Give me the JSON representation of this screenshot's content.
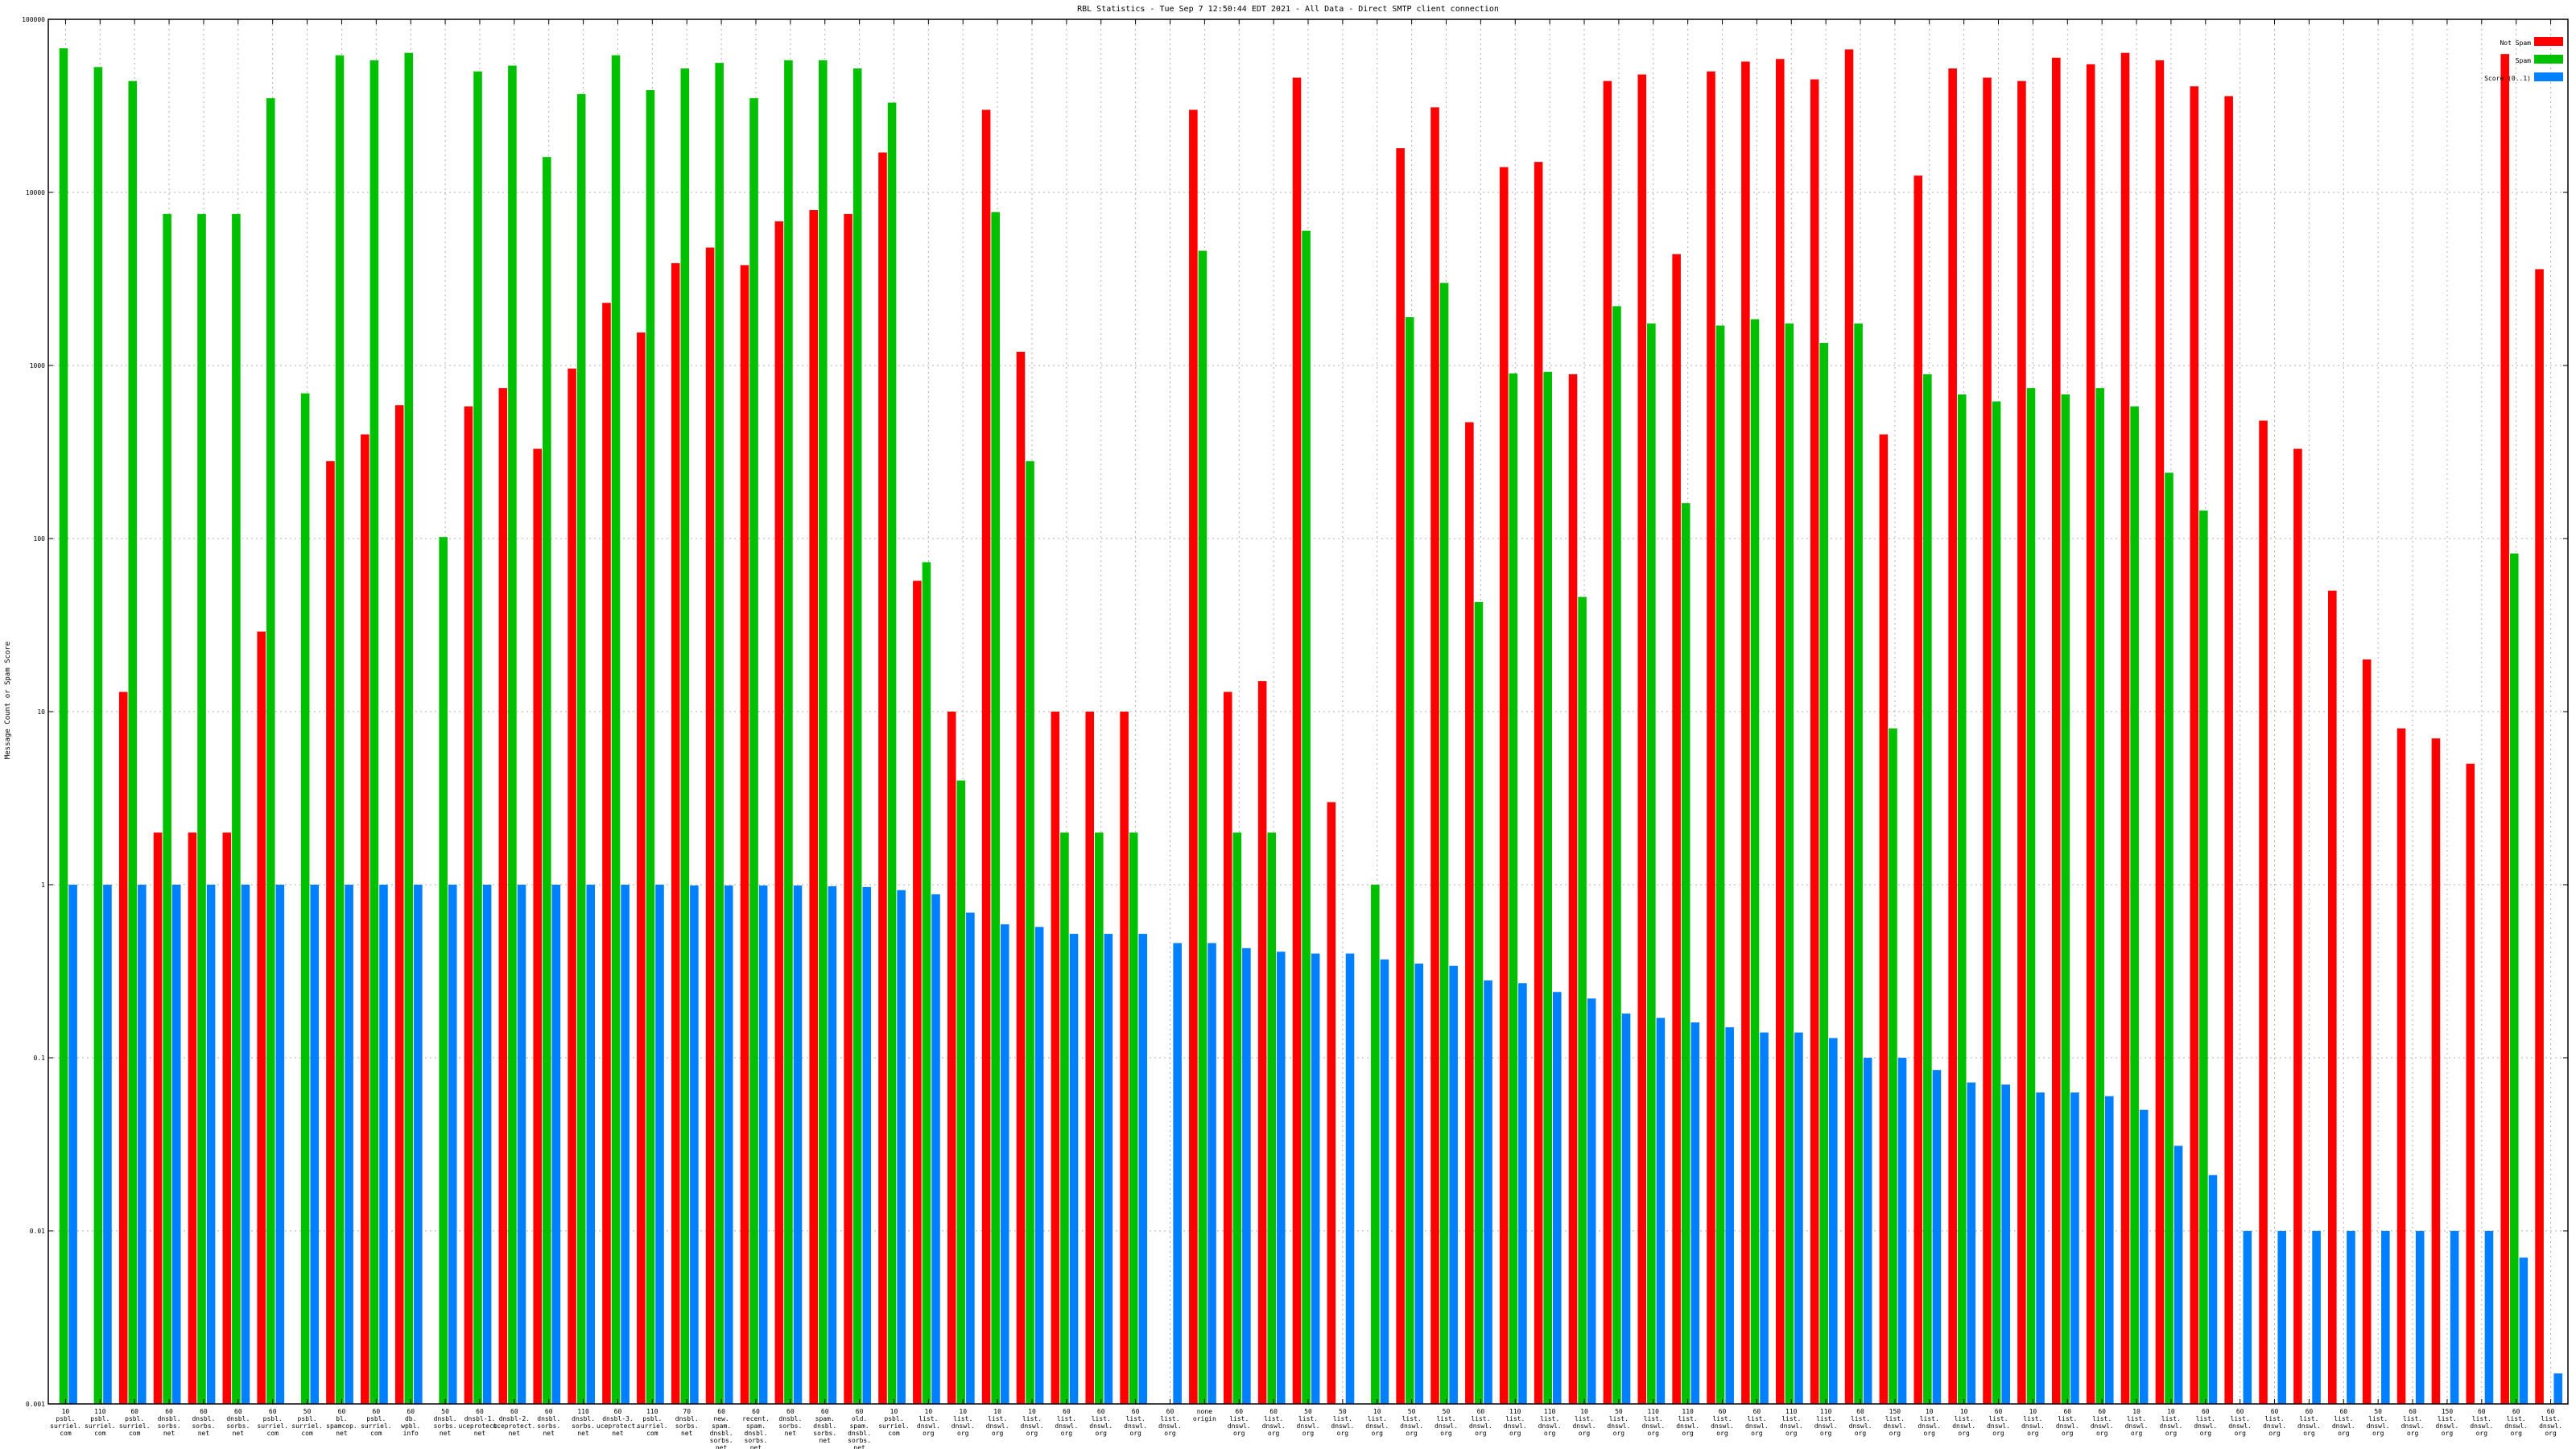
{
  "chart_data": {
    "type": "bar",
    "title": "RBL Statistics - Tue Sep  7 12:50:44 EDT 2021 - All Data - Direct SMTP client connection",
    "ylabel": "Message Count or Spam Score",
    "xlabel": "",
    "y_scale": "log",
    "ylim": [
      0.001,
      100000
    ],
    "y_ticks": [
      {
        "value": 100000,
        "label": "100000"
      },
      {
        "value": 10000,
        "label": "10000"
      },
      {
        "value": 1000,
        "label": "1000"
      },
      {
        "value": 100,
        "label": "100"
      },
      {
        "value": 10,
        "label": "10"
      },
      {
        "value": 1,
        "label": "1"
      },
      {
        "value": 0.1,
        "label": "0.1"
      },
      {
        "value": 0.01,
        "label": "0.01"
      },
      {
        "value": 0.001,
        "label": "0.001"
      }
    ],
    "grid": true,
    "legend_position": "top-right",
    "series_colors": [
      "#ff0000",
      "#00c000",
      "#0080ff"
    ],
    "categories": [
      [
        "10",
        "psbl.",
        "surriel.",
        "com"
      ],
      [
        "110",
        "psbl.",
        "surriel.",
        "com"
      ],
      [
        "60",
        "psbl.",
        "surriel.",
        "com"
      ],
      [
        "60",
        "dnsbl.",
        "sorbs.",
        "net"
      ],
      [
        "60",
        "dnsbl.",
        "sorbs.",
        "net"
      ],
      [
        "60",
        "dnsbl.",
        "sorbs.",
        "net"
      ],
      [
        "60",
        "psbl.",
        "surriel.",
        "com"
      ],
      [
        "50",
        "psbl.",
        "surriel.",
        "com"
      ],
      [
        "60",
        "bl.",
        "spamcop.",
        "net"
      ],
      [
        "60",
        "psbl.",
        "surriel.",
        "com"
      ],
      [
        "60",
        "db.",
        "wpbl.",
        "info"
      ],
      [
        "50",
        "dnsbl.",
        "sorbs.",
        "net"
      ],
      [
        "60",
        "dnsbl-1.",
        "uceprotect.",
        "net"
      ],
      [
        "60",
        "dnsbl-2.",
        "uceprotect.",
        "net"
      ],
      [
        "60",
        "dnsbl.",
        "sorbs.",
        "net"
      ],
      [
        "110",
        "dnsbl.",
        "sorbs.",
        "net"
      ],
      [
        "60",
        "dnsbl-3.",
        "uceprotect.",
        "net"
      ],
      [
        "110",
        "psbl.",
        "surriel.",
        "com"
      ],
      [
        "70",
        "dnsbl.",
        "sorbs.",
        "net"
      ],
      [
        "60",
        "new.",
        "spam.",
        "dnsbl.",
        "sorbs.",
        "net"
      ],
      [
        "60",
        "recent.",
        "spam.",
        "dnsbl.",
        "sorbs.",
        "net"
      ],
      [
        "60",
        "dnsbl.",
        "sorbs.",
        "net"
      ],
      [
        "60",
        "spam.",
        "dnsbl.",
        "sorbs.",
        "net"
      ],
      [
        "60",
        "old.",
        "spam.",
        "dnsbl.",
        "sorbs.",
        "net"
      ],
      [
        "10",
        "psbl.",
        "surriel.",
        "com"
      ],
      [
        "10",
        "list.",
        "dnswl.",
        "org"
      ],
      [
        "10",
        "list.",
        "dnswl.",
        "org"
      ],
      [
        "10",
        "list.",
        "dnswl.",
        "org"
      ],
      [
        "10",
        "list.",
        "dnswl.",
        "org"
      ],
      [
        "60",
        "list.",
        "dnswl.",
        "org"
      ],
      [
        "60",
        "list.",
        "dnswl.",
        "org"
      ],
      [
        "60",
        "list.",
        "dnswl.",
        "org"
      ],
      [
        "60",
        "list.",
        "dnswl.",
        "org"
      ],
      [
        "none",
        "origin"
      ],
      [
        "60",
        "list.",
        "dnswl.",
        "org"
      ],
      [
        "60",
        "list.",
        "dnswl.",
        "org"
      ],
      [
        "50",
        "list.",
        "dnswl.",
        "org"
      ],
      [
        "50",
        "list.",
        "dnswl.",
        "org"
      ],
      [
        "10",
        "list.",
        "dnswl.",
        "org"
      ],
      [
        "50",
        "list.",
        "dnswl.",
        "org"
      ],
      [
        "50",
        "list.",
        "dnswl.",
        "org"
      ],
      [
        "60",
        "list.",
        "dnswl.",
        "org"
      ],
      [
        "110",
        "list.",
        "dnswl.",
        "org"
      ],
      [
        "110",
        "list.",
        "dnswl.",
        "org"
      ],
      [
        "10",
        "list.",
        "dnswl.",
        "org"
      ],
      [
        "50",
        "list.",
        "dnswl.",
        "org"
      ],
      [
        "110",
        "list.",
        "dnswl.",
        "org"
      ],
      [
        "110",
        "list.",
        "dnswl.",
        "org"
      ],
      [
        "60",
        "list.",
        "dnswl.",
        "org"
      ],
      [
        "60",
        "list.",
        "dnswl.",
        "org"
      ],
      [
        "110",
        "list.",
        "dnswl.",
        "org"
      ],
      [
        "110",
        "list.",
        "dnswl.",
        "org"
      ],
      [
        "60",
        "list.",
        "dnswl.",
        "org"
      ],
      [
        "150",
        "list.",
        "dnswl.",
        "org"
      ],
      [
        "10",
        "list.",
        "dnswl.",
        "org"
      ],
      [
        "10",
        "list.",
        "dnswl.",
        "org"
      ],
      [
        "60",
        "list.",
        "dnswl.",
        "org"
      ],
      [
        "10",
        "list.",
        "dnswl.",
        "org"
      ],
      [
        "60",
        "list.",
        "dnswl.",
        "org"
      ],
      [
        "60",
        "list.",
        "dnswl.",
        "org"
      ],
      [
        "10",
        "list.",
        "dnswl.",
        "org"
      ],
      [
        "10",
        "list.",
        "dnswl.",
        "org"
      ],
      [
        "60",
        "list.",
        "dnswl.",
        "org"
      ],
      [
        "60",
        "list.",
        "dnswl.",
        "org"
      ],
      [
        "60",
        "list.",
        "dnswl.",
        "org"
      ],
      [
        "60",
        "list.",
        "dnswl.",
        "org"
      ],
      [
        "60",
        "list.",
        "dnswl.",
        "org"
      ],
      [
        "50",
        "list.",
        "dnswl.",
        "org"
      ],
      [
        "60",
        "list.",
        "dnswl.",
        "org"
      ],
      [
        "150",
        "list.",
        "dnswl.",
        "org"
      ],
      [
        "60",
        "list.",
        "dnswl.",
        "org"
      ],
      [
        "60",
        "list.",
        "dnswl.",
        "org"
      ],
      [
        "60",
        "list.",
        "dnswl.",
        "org"
      ]
    ],
    "series": [
      {
        "name": "Not Spam",
        "values": [
          0.001,
          0.001,
          13,
          2,
          2,
          2,
          29,
          0.001,
          280,
          400,
          590,
          0.001,
          580,
          740,
          330,
          960,
          2300,
          1550,
          3900,
          4800,
          3800,
          6800,
          7900,
          7500,
          17000,
          57,
          10,
          30000,
          1200,
          10,
          10,
          10,
          0.001,
          30000,
          13,
          15,
          46000,
          3,
          0.001,
          18000,
          31000,
          470,
          14000,
          15000,
          890,
          44000,
          48000,
          4400,
          50000,
          57000,
          59000,
          45000,
          67000,
          400,
          12500,
          52000,
          46000,
          44000,
          60000,
          55000,
          64000,
          58000,
          41000,
          36000,
          480,
          330,
          50,
          20,
          8,
          7,
          5,
          63000,
          3600
        ]
      },
      {
        "name": "Spam",
        "values": [
          68000,
          53000,
          44000,
          7500,
          7500,
          7500,
          35000,
          690,
          62000,
          58000,
          64000,
          102,
          50000,
          54000,
          16000,
          37000,
          62000,
          39000,
          52000,
          56000,
          35000,
          58000,
          58000,
          52000,
          33000,
          73,
          4,
          7700,
          280,
          2,
          2,
          2,
          0.001,
          4600,
          2,
          2,
          6000,
          0.001,
          1,
          1900,
          3000,
          43,
          900,
          920,
          46,
          2200,
          1750,
          160,
          1700,
          1850,
          1750,
          1350,
          1750,
          8,
          890,
          680,
          620,
          740,
          680,
          740,
          580,
          240,
          145,
          0.001,
          0.001,
          0.001,
          0.001,
          0.001,
          0.001,
          0.001,
          0.001,
          82,
          0.001
        ]
      },
      {
        "name": "Score (0..1)",
        "values": [
          1,
          1,
          1,
          1,
          1,
          1,
          1,
          1,
          1,
          1,
          1,
          1,
          1,
          1,
          1,
          1,
          1,
          1,
          0.99,
          0.99,
          0.99,
          0.99,
          0.98,
          0.97,
          0.93,
          0.88,
          0.69,
          0.59,
          0.57,
          0.52,
          0.52,
          0.52,
          0.46,
          0.46,
          0.43,
          0.41,
          0.4,
          0.4,
          0.37,
          0.35,
          0.34,
          0.28,
          0.27,
          0.24,
          0.22,
          0.18,
          0.17,
          0.16,
          0.15,
          0.14,
          0.14,
          0.13,
          0.1,
          0.1,
          0.085,
          0.072,
          0.07,
          0.063,
          0.063,
          0.06,
          0.05,
          0.031,
          0.021,
          0.01,
          0.01,
          0.01,
          0.01,
          0.01,
          0.01,
          0.01,
          0.01,
          0.007,
          0.0015
        ]
      }
    ]
  }
}
